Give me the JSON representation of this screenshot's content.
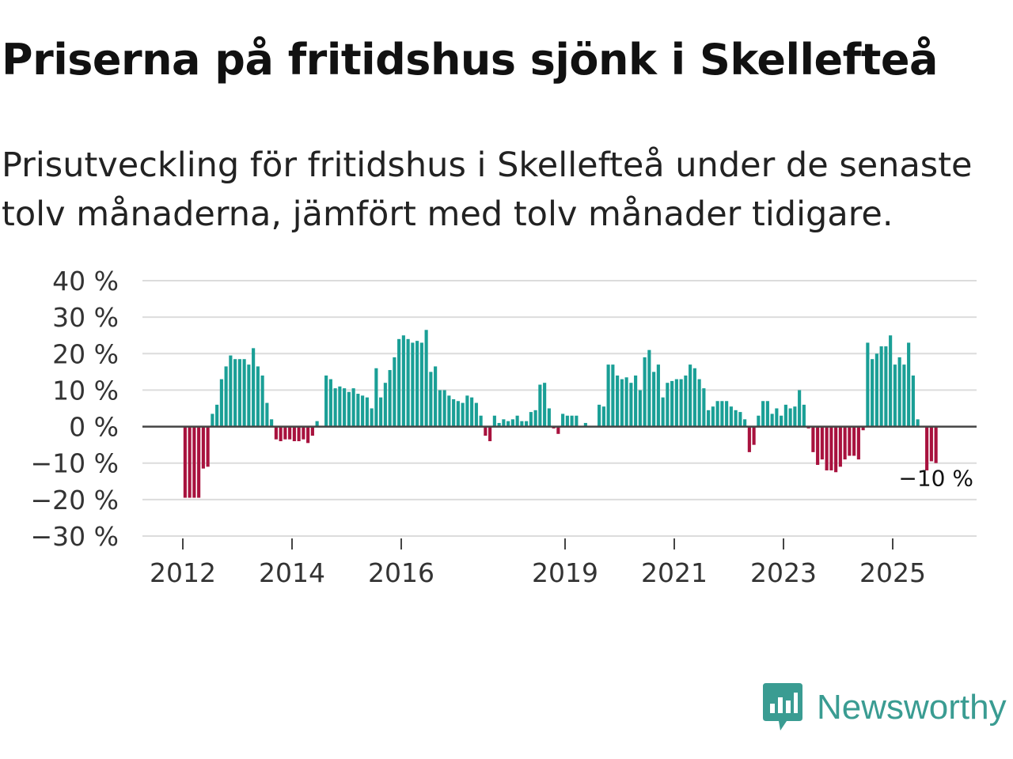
{
  "header": {
    "title": "Priserna på fritidshus sjönk i Skellefteå",
    "subtitle": "Prisutveckling för fritidshus i Skellefteå under de senaste tolv månaderna, jämfört med tolv månader tidigare."
  },
  "brand": {
    "name": "Newsworthy",
    "icon": "newsworthy-logo-icon"
  },
  "colors": {
    "positive": "#1a9f96",
    "negative": "#a8123e",
    "zero_line": "#444444",
    "grid": "#dcdcdc",
    "brand": "#3a9c92"
  },
  "chart_data": {
    "type": "bar",
    "title": "Priserna på fritidshus sjönk i Skellefteå",
    "xlabel": "",
    "ylabel": "",
    "ylim": [
      -30,
      40
    ],
    "y_ticks": [
      40,
      30,
      20,
      10,
      0,
      -10,
      -20,
      -30
    ],
    "y_tick_labels": [
      "40 %",
      "30 %",
      "20 %",
      "10 %",
      "0 %",
      "−10 %",
      "−20 %",
      "−30 %"
    ],
    "x_ticks": [
      2012,
      2014,
      2016,
      2019,
      2021,
      2023,
      2025
    ],
    "x_tick_labels": [
      "2012",
      "2014",
      "2016",
      "2019",
      "2021",
      "2023",
      "2025"
    ],
    "start_year": 2012,
    "start_month": 1,
    "end_label": "−10 %",
    "values": [
      -19.5,
      -19.5,
      -19.5,
      -19.5,
      -11.5,
      -11,
      3.5,
      6,
      13,
      16.5,
      19.5,
      18.5,
      18.5,
      18.5,
      17,
      21.5,
      16.5,
      14,
      6.5,
      2,
      -3.5,
      -4,
      -3.5,
      -3.5,
      -4,
      -4,
      -3.5,
      -4.5,
      -2.5,
      1.5,
      0,
      14,
      13,
      10.5,
      11,
      10.5,
      9.5,
      10.5,
      9,
      8.5,
      8,
      5,
      16,
      8,
      12,
      15.5,
      19,
      24,
      25,
      24,
      23,
      23.5,
      23,
      26.5,
      15,
      16.5,
      10,
      10,
      8.5,
      7.5,
      7,
      6.5,
      8.5,
      8,
      6.5,
      3,
      -2.5,
      -4,
      3,
      1,
      2,
      1.5,
      2,
      3,
      1.5,
      1.5,
      4,
      4.5,
      11.5,
      12,
      5,
      -0.5,
      -2,
      3.5,
      3,
      3,
      3,
      0,
      1,
      0,
      0,
      6,
      5.5,
      17,
      17,
      14,
      13,
      13.5,
      12,
      14,
      10,
      19,
      21,
      15,
      17,
      8,
      12,
      12.5,
      13,
      13,
      14,
      17,
      16,
      13,
      10.5,
      4.5,
      5.5,
      7,
      7,
      7,
      5.5,
      4.5,
      4,
      2,
      -7,
      -5,
      3,
      7,
      7,
      3.5,
      5,
      3,
      6,
      5,
      5.5,
      10,
      6,
      -0.5,
      -7,
      -10.5,
      -9,
      -12,
      -12,
      -12.5,
      -11,
      -9,
      -8,
      -8,
      -9,
      -1,
      23,
      18.5,
      20,
      22,
      22,
      25,
      17,
      19,
      17,
      23,
      14,
      2,
      0,
      -12,
      -9.5,
      -10
    ]
  }
}
